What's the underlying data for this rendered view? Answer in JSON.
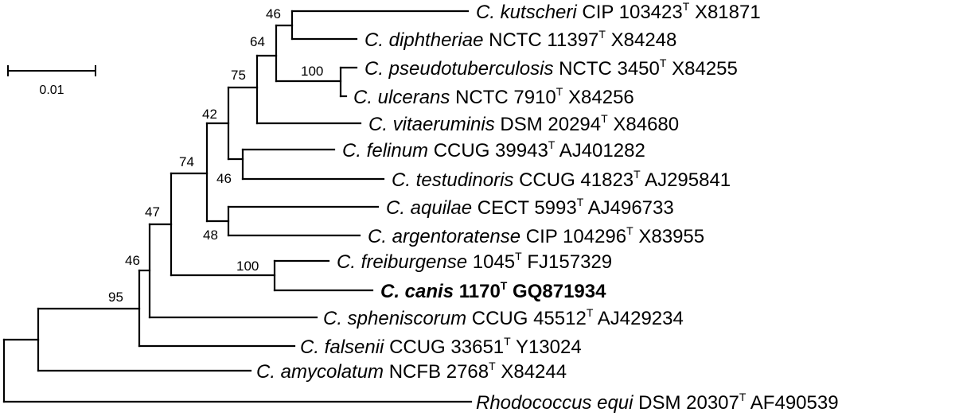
{
  "scale_bar": {
    "label": "0.01"
  },
  "taxa": [
    {
      "id": "kutscheri",
      "genus": "C.",
      "species": "kutscheri",
      "strain": "CIP 103423",
      "type_mark": "T",
      "accession": "X81871",
      "highlight": false
    },
    {
      "id": "diphtheriae",
      "genus": "C.",
      "species": "diphtheriae",
      "strain": "NCTC 11397",
      "type_mark": "T",
      "accession": "X84248",
      "highlight": false
    },
    {
      "id": "pseudotuberculosis",
      "genus": "C.",
      "species": "pseudotuberculosis",
      "strain": "NCTC 3450",
      "type_mark": "T",
      "accession": "X84255",
      "highlight": false
    },
    {
      "id": "ulcerans",
      "genus": "C.",
      "species": "ulcerans",
      "strain": "NCTC 7910",
      "type_mark": "T",
      "accession": "X84256",
      "highlight": false
    },
    {
      "id": "vitaeruminis",
      "genus": "C.",
      "species": "vitaeruminis",
      "strain": "DSM 20294",
      "type_mark": "T",
      "accession": "X84680",
      "highlight": false
    },
    {
      "id": "felinum",
      "genus": "C.",
      "species": "felinum",
      "strain": "CCUG 39943",
      "type_mark": "T",
      "accession": "AJ401282",
      "highlight": false
    },
    {
      "id": "testudinoris",
      "genus": "C.",
      "species": "testudinoris",
      "strain": "CCUG 41823",
      "type_mark": "T",
      "accession": "AJ295841",
      "highlight": false
    },
    {
      "id": "aquilae",
      "genus": "C.",
      "species": "aquilae",
      "strain": "CECT 5993",
      "type_mark": "T",
      "accession": "AJ496733",
      "highlight": false
    },
    {
      "id": "argentoratense",
      "genus": "C.",
      "species": "argentoratense",
      "strain": "CIP 104296",
      "type_mark": "T",
      "accession": "X83955",
      "highlight": false
    },
    {
      "id": "freiburgense",
      "genus": "C.",
      "species": "freiburgense",
      "strain": "1045",
      "type_mark": "T",
      "accession": "FJ157329",
      "highlight": false
    },
    {
      "id": "canis",
      "genus": "C.",
      "species": "canis",
      "strain": "1170",
      "type_mark": "T",
      "accession": "GQ871934",
      "highlight": true
    },
    {
      "id": "spheniscorum",
      "genus": "C.",
      "species": "spheniscorum",
      "strain": "CCUG 45512",
      "type_mark": "T",
      "accession": "AJ429234",
      "highlight": false
    },
    {
      "id": "falsenii",
      "genus": "C.",
      "species": "falsenii",
      "strain": "CCUG 33651",
      "type_mark": "T",
      "accession": "Y13024",
      "highlight": false
    },
    {
      "id": "amycolatum",
      "genus": "C.",
      "species": "amycolatum",
      "strain": "NCFB 2768",
      "type_mark": "T",
      "accession": "X84244",
      "highlight": false
    },
    {
      "id": "rhodococcus",
      "genus": "Rhodococcus",
      "species": "equi",
      "strain": "DSM 20307",
      "type_mark": "T",
      "accession": "AF490539",
      "highlight": false
    }
  ],
  "bootstrap": {
    "n46_kutscheri_diphtheriae": "46",
    "n64": "64",
    "n100_pseudo_ulcerans": "100",
    "n75": "75",
    "n42": "42",
    "n46_felinum_testudinoris": "46",
    "n74": "74",
    "n48": "48",
    "n47": "47",
    "n100_freiburgense_canis": "100",
    "n46_spheniscorum": "46",
    "n95": "95"
  }
}
